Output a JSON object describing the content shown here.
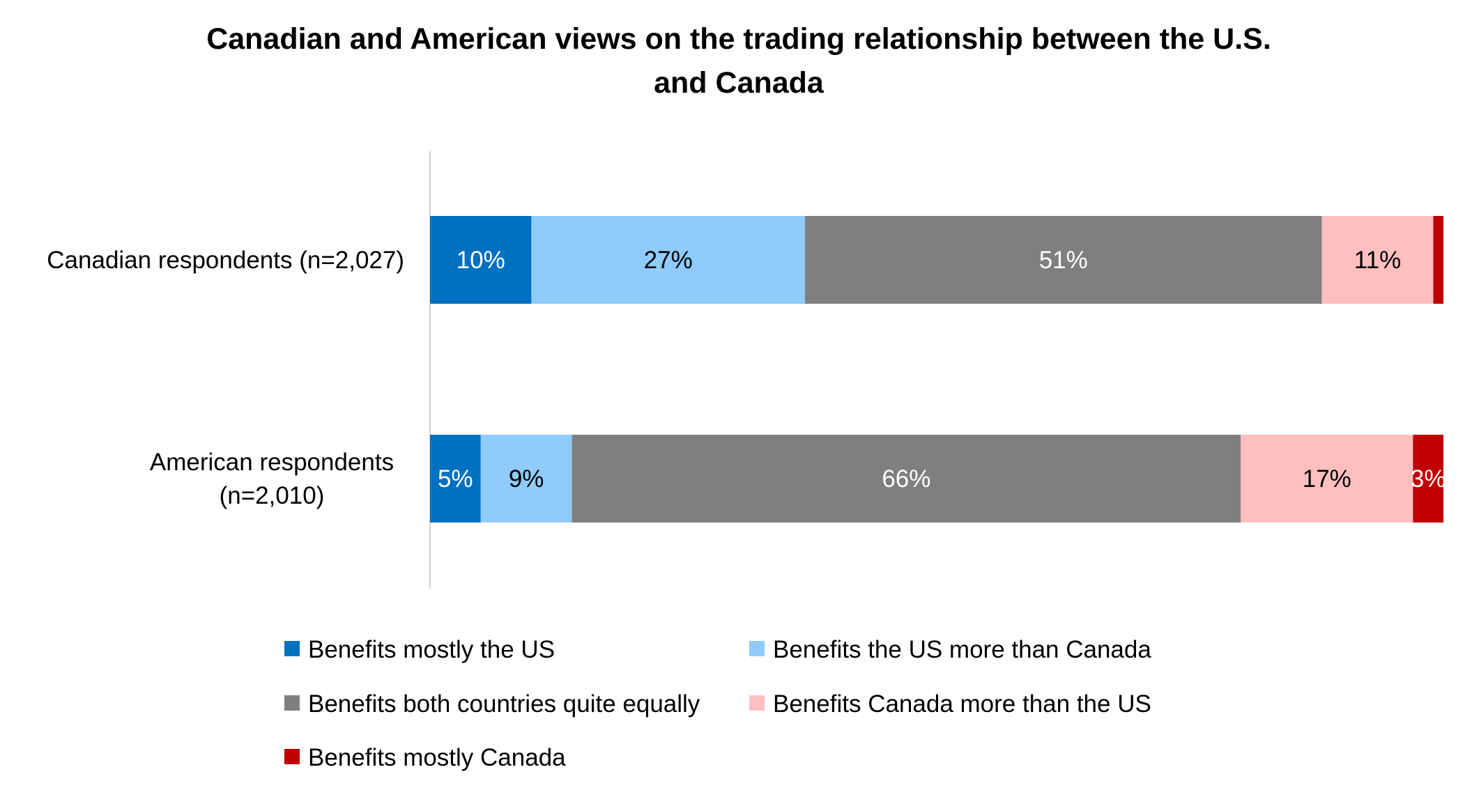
{
  "chart_data": {
    "type": "bar",
    "orientation": "horizontal",
    "stacked": "100%",
    "title": [
      "Canadian and American views on the trading relationship between the U.S.",
      "and Canada"
    ],
    "categories": [
      [
        "Canadian respondents (n=2,027)"
      ],
      [
        "American respondents",
        "(n=2,010)"
      ]
    ],
    "series": [
      {
        "name": "Benefits mostly the US",
        "color": "#0070C0",
        "label_color": "#ffffff",
        "values": [
          10,
          5
        ],
        "labels": [
          "10%",
          "5%"
        ]
      },
      {
        "name": "Benefits the US more than Canada",
        "color": "#8FCBFC",
        "label_color": "#000000",
        "values": [
          27,
          9
        ],
        "labels": [
          "27%",
          "9%"
        ]
      },
      {
        "name": "Benefits both countries quite equally",
        "color": "#7F7F7F",
        "label_color": "#ffffff",
        "values": [
          51,
          66
        ],
        "labels": [
          "51%",
          "66%"
        ]
      },
      {
        "name": "Benefits Canada more than the US",
        "color": "#FFBFBF",
        "label_color": "#000000",
        "values": [
          11,
          17
        ],
        "labels": [
          "11%",
          "17%"
        ]
      },
      {
        "name": "Benefits mostly Canada",
        "color": "#C00000",
        "label_color": "#ffffff",
        "values": [
          1,
          3
        ],
        "labels": [
          null,
          "3%"
        ]
      }
    ],
    "xlim": [
      0,
      100
    ],
    "legend_position": "bottom",
    "grid": false
  }
}
